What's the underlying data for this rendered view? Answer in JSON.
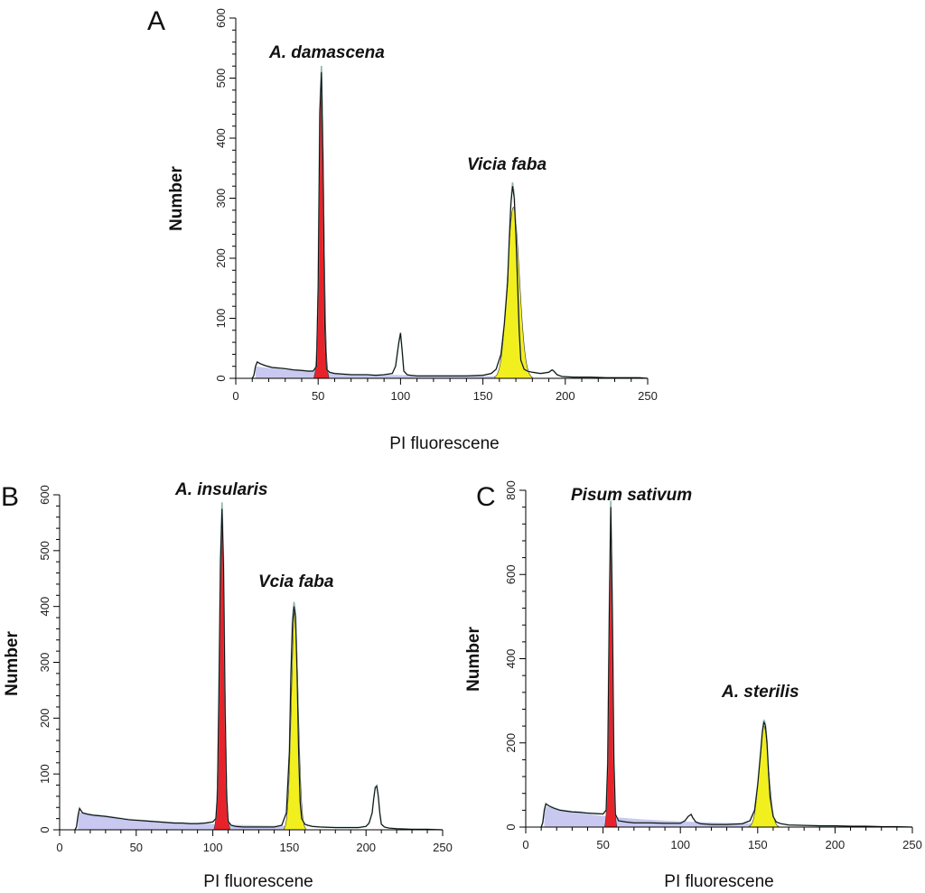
{
  "colors": {
    "debris_fill": "#c8c8f0",
    "peak1_fill": "#e8222a",
    "peak2_fill": "#f2ef1e",
    "trace_line": "#111111",
    "fit_line": "#8fb4b0"
  },
  "chart_data": [
    {
      "type": "area",
      "panel": "A",
      "xlabel": "PI fluorescene",
      "ylabel": "Number",
      "xlim": [
        0,
        250
      ],
      "ylim": [
        0,
        600
      ],
      "xticks": [
        0,
        50,
        100,
        150,
        200,
        250
      ],
      "yticks": [
        0,
        100,
        200,
        300,
        400,
        500,
        600
      ],
      "grid": false,
      "annotations": [
        {
          "text": "A. damascena",
          "x": 52,
          "y": 545
        },
        {
          "text": "Vicia faba",
          "x": 169,
          "y": 350
        }
      ],
      "series": [
        {
          "values_x": [
            10,
            11,
            12,
            13,
            15,
            18,
            22,
            26,
            30,
            35,
            40,
            44,
            47,
            49,
            50,
            51,
            52,
            53,
            54,
            55,
            57,
            60,
            65,
            70,
            75,
            80,
            85,
            90,
            95,
            97,
            99,
            100,
            101,
            102,
            104,
            106,
            110,
            120,
            130,
            140,
            150,
            155,
            158,
            161,
            163,
            165,
            166,
            167,
            168,
            169,
            170,
            171,
            172,
            173,
            175,
            177,
            180,
            185,
            190,
            192,
            193,
            195,
            198,
            205,
            215,
            225,
            235,
            245,
            250
          ],
          "values_y": [
            0,
            5,
            20,
            27,
            24,
            21,
            18,
            17,
            16,
            14,
            13,
            12,
            12,
            20,
            150,
            440,
            510,
            350,
            90,
            15,
            10,
            8,
            7,
            6,
            6,
            6,
            5,
            6,
            8,
            20,
            60,
            75,
            45,
            12,
            6,
            5,
            4,
            4,
            4,
            4,
            5,
            8,
            15,
            40,
            90,
            160,
            230,
            290,
            320,
            300,
            240,
            160,
            80,
            30,
            15,
            12,
            10,
            8,
            10,
            14,
            12,
            6,
            3,
            2,
            2,
            1,
            1,
            1,
            0
          ],
          "peaks": [
            {
              "name": "A. damascena",
              "fill": "peak1",
              "center": 52,
              "height": 505,
              "width": 1.4
            },
            {
              "name": "Vicia faba",
              "fill": "peak2",
              "center": 168.5,
              "height": 285,
              "width": 3.6
            }
          ],
          "debris": {
            "start": 12,
            "end": 160,
            "level": 20,
            "decay": 45,
            "floor": 3
          }
        }
      ]
    },
    {
      "type": "area",
      "panel": "B",
      "xlabel": "PI fluorescene",
      "ylabel": "Number",
      "xlim": [
        0,
        250
      ],
      "ylim": [
        0,
        600
      ],
      "xticks": [
        0,
        50,
        100,
        150,
        200,
        250
      ],
      "yticks": [
        0,
        100,
        200,
        300,
        400,
        500,
        600
      ],
      "grid": false,
      "annotations": [
        {
          "text": "A. insularis",
          "x": 104,
          "y": 590
        },
        {
          "text": "Vcia faba",
          "x": 151,
          "y": 430
        }
      ],
      "series": [
        {
          "values_x": [
            10,
            11,
            12,
            13,
            15,
            18,
            22,
            26,
            30,
            35,
            40,
            45,
            50,
            55,
            60,
            65,
            70,
            75,
            80,
            85,
            90,
            95,
            100,
            102,
            103,
            104,
            105,
            106,
            107,
            108,
            109,
            110,
            112,
            115,
            120,
            125,
            130,
            135,
            140,
            145,
            148,
            150,
            151,
            152,
            153,
            154,
            155,
            156,
            157,
            158,
            160,
            162,
            165,
            170,
            180,
            190,
            195,
            200,
            202,
            204,
            205,
            206,
            207,
            208,
            209,
            210,
            212,
            215,
            220,
            230,
            240,
            250
          ],
          "values_y": [
            0,
            5,
            25,
            38,
            30,
            28,
            26,
            25,
            24,
            22,
            20,
            18,
            17,
            16,
            15,
            14,
            13,
            12,
            12,
            11,
            11,
            12,
            14,
            20,
            60,
            250,
            480,
            575,
            470,
            220,
            60,
            15,
            8,
            6,
            5,
            5,
            5,
            5,
            5,
            8,
            30,
            140,
            280,
            370,
            400,
            380,
            280,
            140,
            50,
            20,
            10,
            8,
            6,
            5,
            4,
            4,
            4,
            6,
            12,
            30,
            55,
            75,
            78,
            60,
            30,
            10,
            5,
            3,
            2,
            1,
            1,
            0
          ],
          "peaks": [
            {
              "name": "A. insularis",
              "fill": "peak1",
              "center": 106,
              "height": 565,
              "width": 1.6
            },
            {
              "name": "Vcia faba",
              "fill": "peak2",
              "center": 153.5,
              "height": 390,
              "width": 2.2
            }
          ],
          "debris": {
            "start": 12,
            "end": 150,
            "level": 32,
            "decay": 60,
            "floor": 4
          }
        }
      ]
    },
    {
      "type": "area",
      "panel": "C",
      "xlabel": "PI fluorescene",
      "ylabel": "Number",
      "xlim": [
        0,
        250
      ],
      "ylim": [
        0,
        800
      ],
      "xticks": [
        0,
        50,
        100,
        150,
        200,
        250
      ],
      "yticks": [
        0,
        200,
        400,
        600,
        800
      ],
      "grid": false,
      "annotations": [
        {
          "text": "Pisum sativum",
          "x": 54,
          "y": 820
        },
        {
          "text": "A. sterilis",
          "x": 146,
          "y": 340
        }
      ],
      "series": [
        {
          "values_x": [
            10,
            11,
            12,
            13,
            15,
            18,
            22,
            26,
            30,
            35,
            40,
            45,
            50,
            52,
            53,
            54,
            55,
            56,
            57,
            58,
            60,
            65,
            70,
            80,
            90,
            100,
            103,
            105,
            107,
            108,
            110,
            113,
            120,
            130,
            140,
            145,
            148,
            150,
            152,
            153,
            154,
            155,
            156,
            157,
            158,
            160,
            162,
            165,
            170,
            180,
            190,
            200,
            210,
            220,
            230,
            240,
            250
          ],
          "values_y": [
            0,
            10,
            40,
            55,
            50,
            45,
            40,
            38,
            36,
            35,
            33,
            32,
            31,
            40,
            150,
            500,
            760,
            520,
            160,
            30,
            15,
            12,
            10,
            10,
            9,
            9,
            15,
            25,
            30,
            22,
            12,
            8,
            6,
            6,
            8,
            15,
            40,
            100,
            180,
            225,
            250,
            240,
            200,
            130,
            70,
            25,
            12,
            8,
            5,
            4,
            3,
            3,
            2,
            2,
            1,
            1,
            0
          ],
          "peaks": [
            {
              "name": "Pisum sativum",
              "fill": "peak1",
              "center": 55,
              "height": 745,
              "width": 1.2
            },
            {
              "name": "A. sterilis",
              "fill": "peak2",
              "center": 154,
              "height": 240,
              "width": 3.0
            }
          ],
          "debris": {
            "start": 12,
            "end": 150,
            "level": 50,
            "decay": 50,
            "floor": 6
          }
        }
      ]
    }
  ],
  "panels": [
    {
      "letter": "A",
      "xlabel": "PI fluorescene",
      "ylabel": "Number",
      "labels": [
        "A. damascena",
        "Vicia faba"
      ]
    },
    {
      "letter": "B",
      "xlabel": "PI fluorescene",
      "ylabel": "Number",
      "labels": [
        "A. insularis",
        "Vcia faba"
      ]
    },
    {
      "letter": "C",
      "xlabel": "PI fluorescene",
      "ylabel": "Number",
      "labels": [
        "Pisum sativum",
        "A. sterilis"
      ]
    }
  ]
}
